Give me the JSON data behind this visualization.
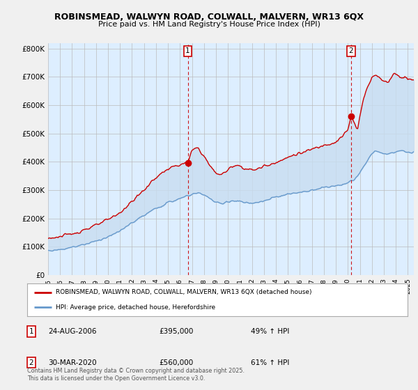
{
  "title_line1": "ROBINSMEAD, WALWYN ROAD, COLWALL, MALVERN, WR13 6QX",
  "title_line2": "Price paid vs. HM Land Registry's House Price Index (HPI)",
  "background_color": "#f0f0f0",
  "plot_bg_color": "#ddeeff",
  "fill_color": "#c8ddf0",
  "red_color": "#cc0000",
  "blue_color": "#6699cc",
  "annotation1": {
    "num": "1",
    "date": "24-AUG-2006",
    "price": "£395,000",
    "pct": "49% ↑ HPI",
    "x_year": 2006.65,
    "y_val": 395000
  },
  "annotation2": {
    "num": "2",
    "date": "30-MAR-2020",
    "price": "£560,000",
    "pct": "61% ↑ HPI",
    "x_year": 2020.25,
    "y_val": 560000
  },
  "legend_label_red": "ROBINSMEAD, WALWYN ROAD, COLWALL, MALVERN, WR13 6QX (detached house)",
  "legend_label_blue": "HPI: Average price, detached house, Herefordshire",
  "footer": "Contains HM Land Registry data © Crown copyright and database right 2025.\nThis data is licensed under the Open Government Licence v3.0.",
  "ylim": [
    0,
    820000
  ],
  "xlim_start": 1995.0,
  "xlim_end": 2025.5,
  "yticks": [
    0,
    100000,
    200000,
    300000,
    400000,
    500000,
    600000,
    700000,
    800000
  ],
  "ytick_labels": [
    "£0",
    "£100K",
    "£200K",
    "£300K",
    "£400K",
    "£500K",
    "£600K",
    "£700K",
    "£800K"
  ],
  "xticks": [
    1995,
    1996,
    1997,
    1998,
    1999,
    2000,
    2001,
    2002,
    2003,
    2004,
    2005,
    2006,
    2007,
    2008,
    2009,
    2010,
    2011,
    2012,
    2013,
    2014,
    2015,
    2016,
    2017,
    2018,
    2019,
    2020,
    2021,
    2022,
    2023,
    2024,
    2025
  ]
}
